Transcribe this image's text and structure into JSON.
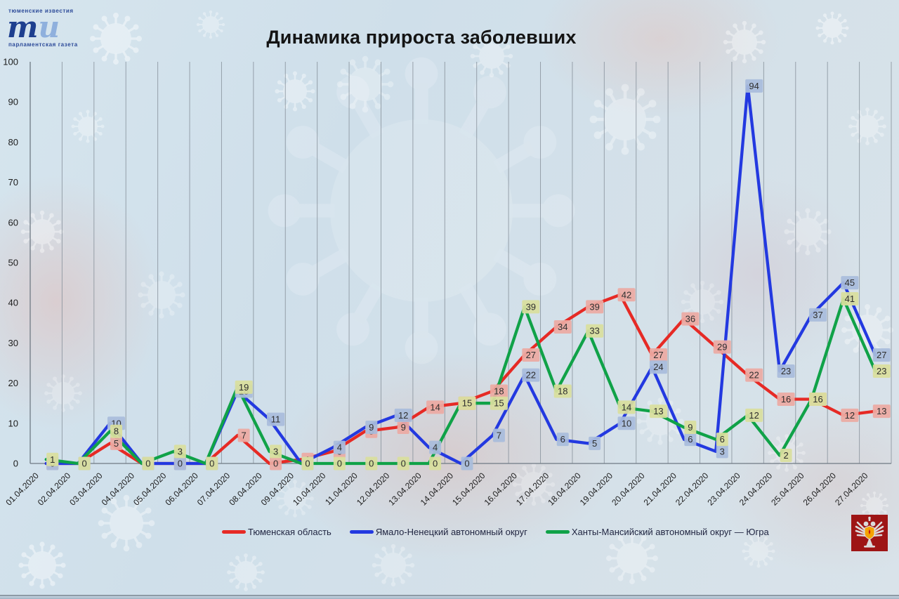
{
  "logo": {
    "line1": "тюменские известия",
    "main": "ти",
    "line2": "парламентская газета"
  },
  "title": "Динамика прироста заболевших",
  "icons": {
    "emblem": "double-headed-eagle-emblem"
  },
  "chart_data": {
    "type": "line",
    "title": "Динамика прироста заболевших",
    "x": [
      "01.04.2020",
      "02.04.2020",
      "03.04.2020",
      "04.04.2020",
      "05.04.2020",
      "06.04.2020",
      "07.04.2020",
      "08.04.2020",
      "09.04.2020",
      "10.04.2020",
      "11.04.2020",
      "12.04.2020",
      "13.04.2020",
      "14.04.2020",
      "15.04.2020",
      "16.04.2020",
      "17.04.2020",
      "18.04.2020",
      "19.04.2020",
      "20.04.2020",
      "21.04.2020",
      "22.04.2020",
      "23.04.2020",
      "24.04.2020",
      "25.04.2020",
      "26.04.2020",
      "27.04.2020"
    ],
    "ylim": [
      0,
      100
    ],
    "yticks": [
      0,
      10,
      20,
      30,
      40,
      50,
      60,
      70,
      80,
      90,
      100
    ],
    "grid": "vertical-only",
    "data_labels": true,
    "legend_position": "bottom",
    "series": [
      {
        "name": "Тюменская область",
        "color": "#e62a25",
        "label_bg": "#ecaaa2",
        "values": [
          0,
          0,
          5,
          0,
          0,
          0,
          7,
          0,
          1,
          3,
          8,
          9,
          14,
          15,
          18,
          27,
          34,
          39,
          42,
          27,
          36,
          29,
          22,
          16,
          16,
          12,
          13
        ]
      },
      {
        "name": "Ямало-Ненецкий автономный округ",
        "color": "#2339e0",
        "label_bg": "#a9bcdc",
        "values": [
          0,
          0,
          10,
          0,
          0,
          0,
          18,
          11,
          0,
          4,
          9,
          12,
          4,
          0,
          7,
          22,
          6,
          5,
          10,
          24,
          6,
          3,
          94,
          23,
          37,
          45,
          27
        ]
      },
      {
        "name": "Ханты-Мансийский автономный округ — Югра",
        "color": "#10a248",
        "label_bg": "#d9df9d",
        "values": [
          1,
          0,
          8,
          0,
          3,
          0,
          19,
          3,
          0,
          0,
          0,
          0,
          0,
          15,
          15,
          39,
          18,
          33,
          14,
          13,
          9,
          6,
          12,
          2,
          16,
          41,
          23
        ]
      }
    ]
  }
}
